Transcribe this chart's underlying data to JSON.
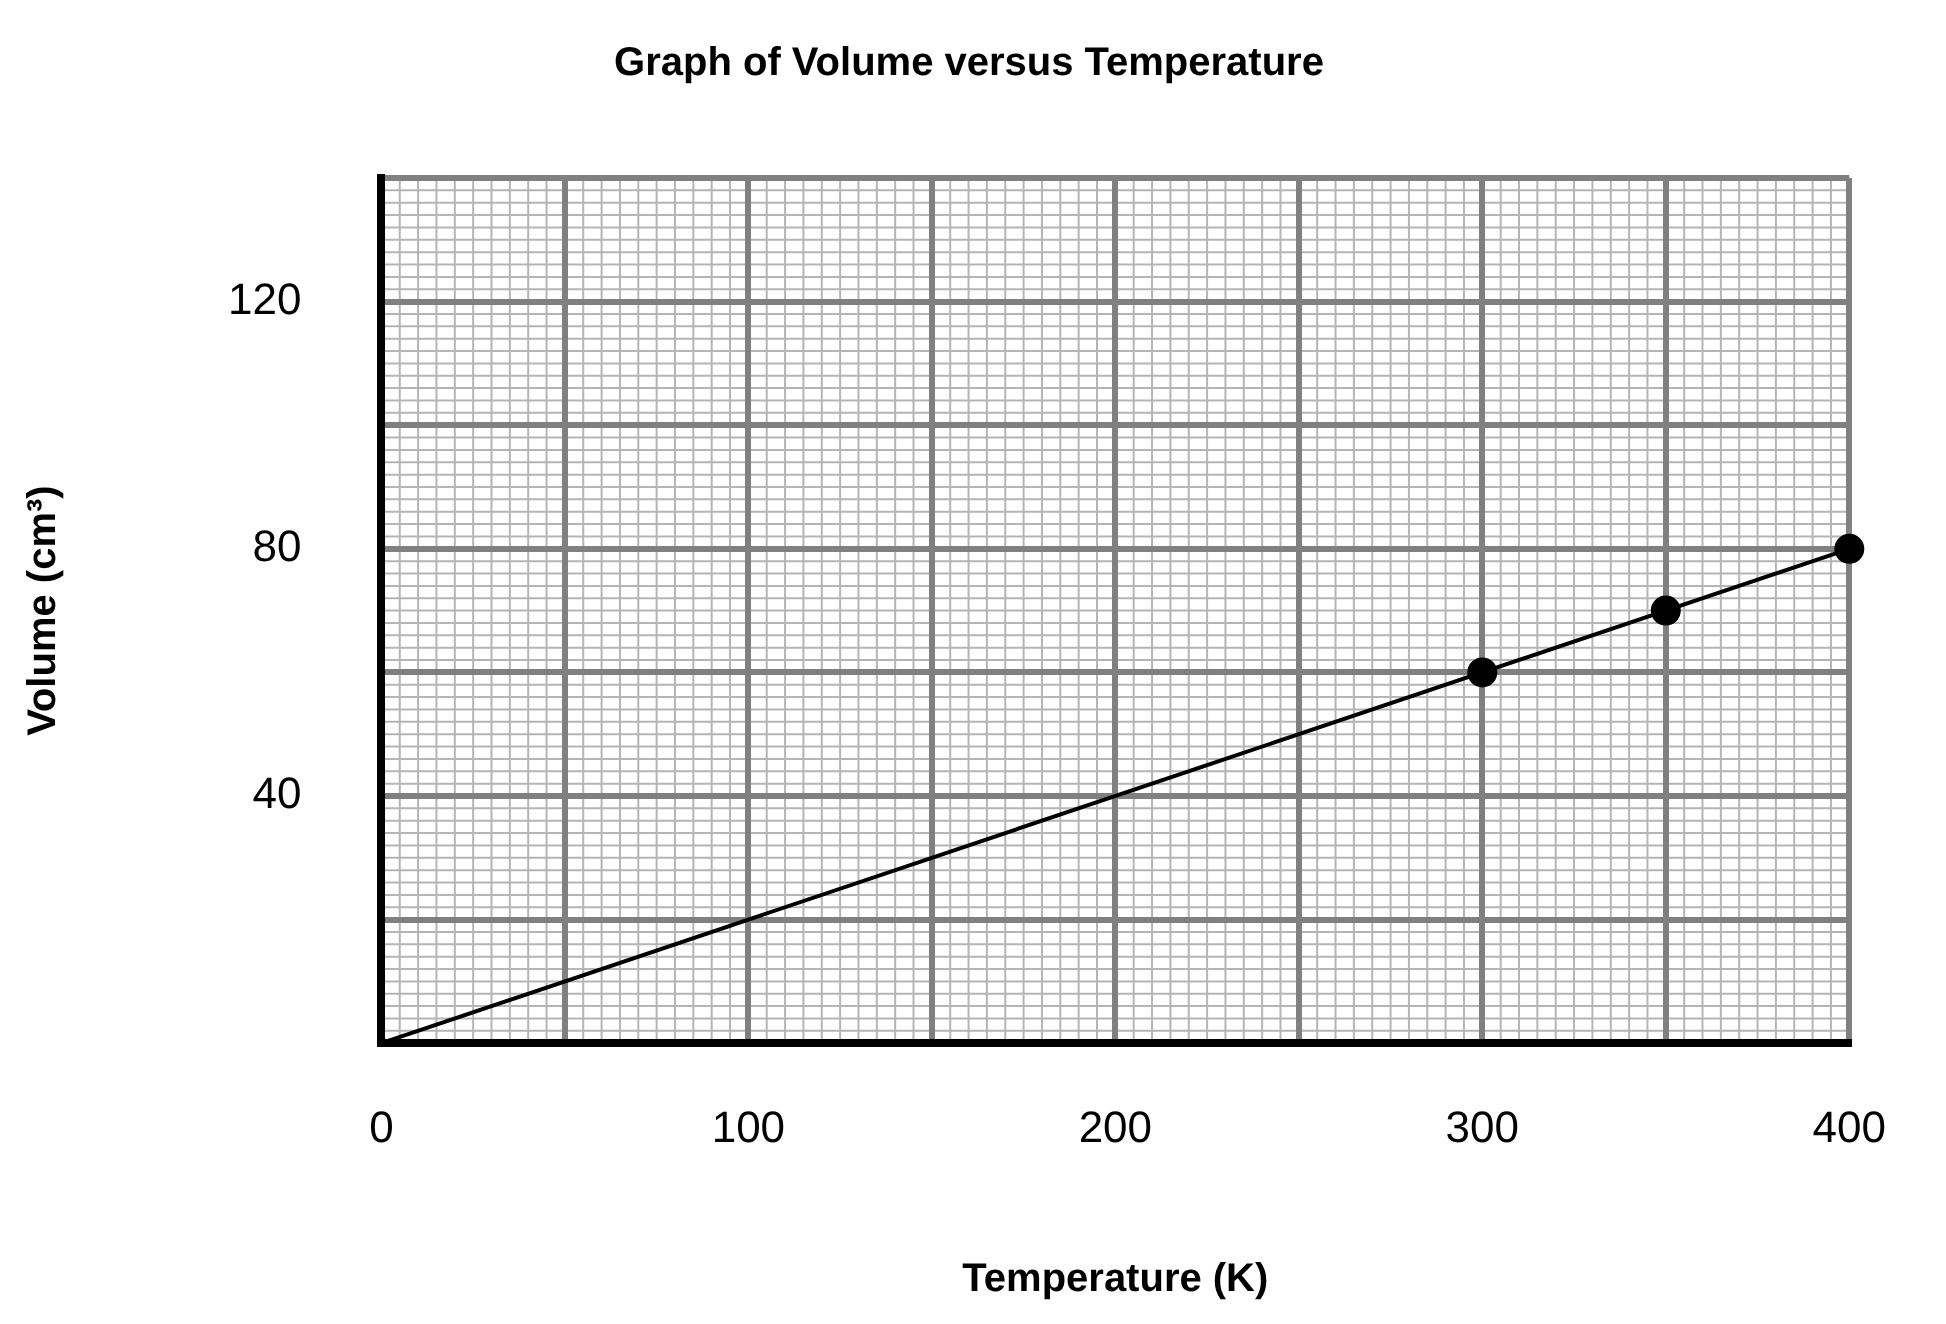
{
  "chart_data": {
    "type": "scatter",
    "title": "Graph of Volume versus Temperature",
    "xlabel": "Temperature (K)",
    "ylabel": "Volume (cm³)",
    "xlim": [
      0,
      400
    ],
    "ylim": [
      0,
      140
    ],
    "xticks": [
      0,
      {
        "value": 50,
        "label": null
      },
      100,
      {
        "value": 150,
        "label": null
      },
      200,
      {
        "value": 250,
        "label": null
      },
      300,
      {
        "value": 350,
        "label": null
      },
      400
    ],
    "yticks": [
      {
        "value": 0,
        "label": null
      },
      {
        "value": 20,
        "label": null
      },
      40,
      {
        "value": 60,
        "label": null
      },
      80,
      {
        "value": 100,
        "label": null
      },
      120,
      {
        "value": 140,
        "label": null
      }
    ],
    "grid": true,
    "legend": false,
    "series": [
      {
        "type": "scatter",
        "color": "#000000",
        "marker": "circle",
        "x": [
          300,
          350,
          400
        ],
        "values": [
          60,
          70,
          80
        ]
      },
      {
        "type": "line",
        "color": "#000000",
        "marker": "none",
        "line_style": "solid",
        "x": [
          0,
          400
        ],
        "values": [
          0,
          80
        ]
      }
    ]
  }
}
